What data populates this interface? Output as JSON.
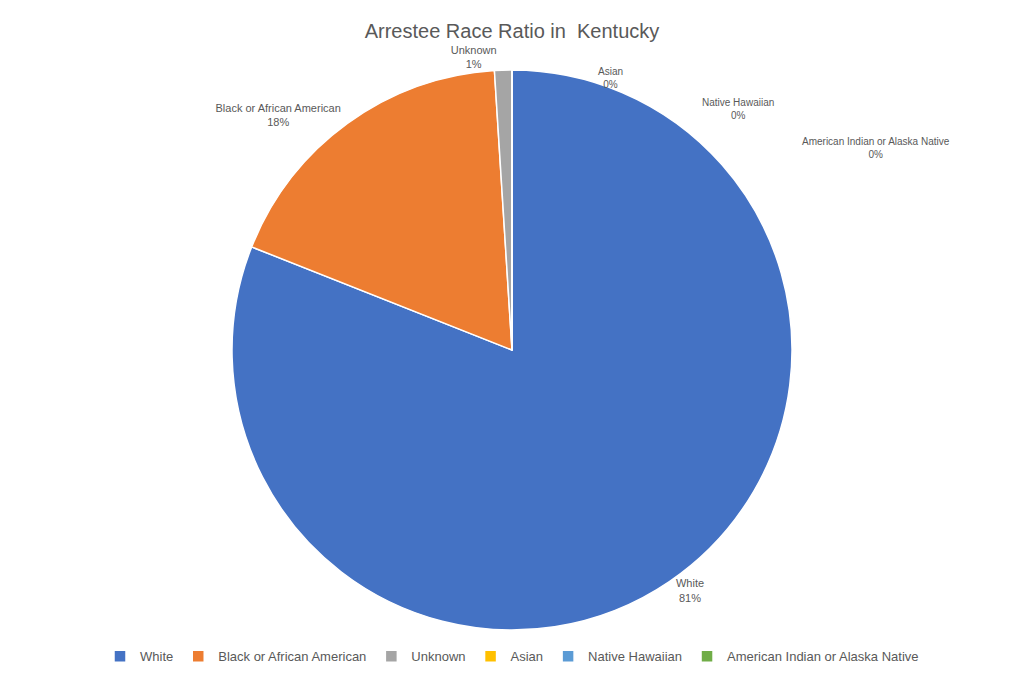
{
  "chart_data": {
    "type": "pie",
    "title": "Arrestee Race Ratio in  Kentucky",
    "categories": [
      "White",
      "Black or African American",
      "Unknown",
      "Asian",
      "Native Hawaiian",
      "American Indian or Alaska Native"
    ],
    "values": [
      81,
      18,
      1,
      0,
      0,
      0
    ],
    "value_labels": [
      "81%",
      "18%",
      "1%",
      "0%",
      "0%",
      "0%"
    ],
    "colors": [
      "#4472c4",
      "#ed7d31",
      "#a5a5a5",
      "#ffc000",
      "#5b9bd5",
      "#70ad47"
    ],
    "data_labels": true,
    "legend": "bottom"
  }
}
